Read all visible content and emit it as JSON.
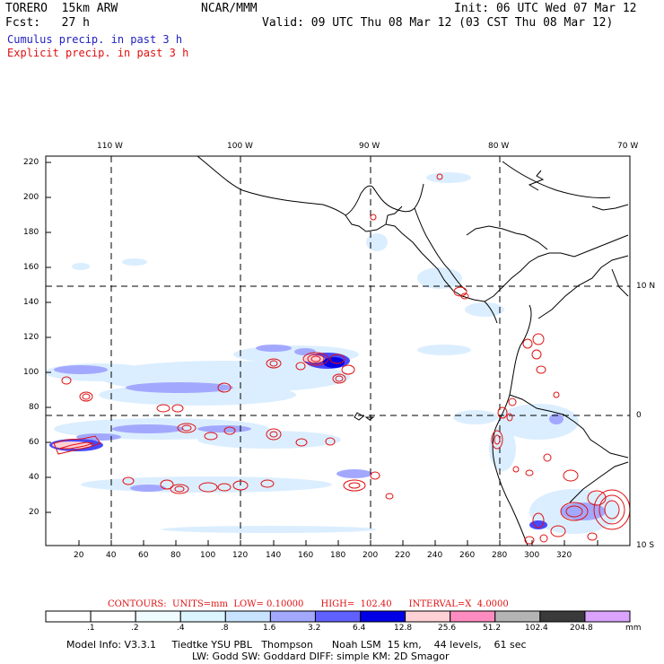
{
  "header": {
    "model": "TORERO  15km ARW",
    "org": "NCAR/MMM",
    "init": "Init: 06 UTC Wed 07 Mar 12",
    "fcst": "Fcst:   27 h",
    "valid": "Valid: 09 UTC Thu 08 Mar 12 (03 CST Thu 08 Mar 12)",
    "legend_cumulus": "Cumulus precip. in past 3 h",
    "legend_explicit": "Explicit precip. in past 3 h"
  },
  "map": {
    "longitude_labels": [
      "110 W",
      "100 W",
      "90 W",
      "80 W",
      "70 W"
    ],
    "latitude_labels": [
      "10 N",
      "0",
      "10 S"
    ],
    "x_ticks": [
      "20",
      "40",
      "60",
      "80",
      "100",
      "120",
      "140",
      "160",
      "180",
      "200",
      "220",
      "240",
      "260",
      "280",
      "300",
      "320"
    ],
    "y_ticks": [
      "220",
      "200",
      "180",
      "160",
      "140",
      "120",
      "100",
      "80",
      "60",
      "40",
      "20"
    ]
  },
  "contours": {
    "label": "CONTOURS:",
    "units": "UNITS=mm",
    "low": "LOW= 0.10000",
    "high": "HIGH=  102.40",
    "interval": "INTERVAL=X  4.0000"
  },
  "colorbar": {
    "levels": [
      ".1",
      ".2",
      ".4",
      ".8",
      "1.6",
      "3.2",
      "6.4",
      "12.8",
      "25.6",
      "51.2",
      "102.4",
      "204.8"
    ],
    "unit": "mm",
    "colors": [
      "#ffffff",
      "#ffffff",
      "#f0fbff",
      "#dbf5ff",
      "#c7e3ff",
      "#a3a8ff",
      "#6060ff",
      "#0000e6",
      "#ffd0d6",
      "#ff8cc0",
      "#b4b4b4",
      "#3a3a3a",
      "#d9a3ff"
    ]
  },
  "model_info": {
    "line1": "Model Info: V3.3.1     Tiedtke YSU PBL   Thompson      Noah LSM  15 km,    44 levels,    61 sec",
    "line2": "LW: Godd SW: Goddard DIFF: simple KM: 2D Smagor"
  }
}
